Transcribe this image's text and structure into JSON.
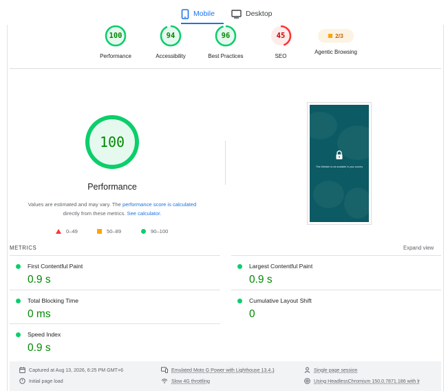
{
  "tabs": [
    {
      "label": "Mobile",
      "active": true,
      "icon": "smartphone-icon"
    },
    {
      "label": "Desktop",
      "active": false,
      "icon": "monitor-icon"
    }
  ],
  "categories": [
    {
      "label": "Performance",
      "score": 100,
      "status": "pass"
    },
    {
      "label": "Accessibility",
      "score": 94,
      "status": "pass"
    },
    {
      "label": "Best Practices",
      "score": 96,
      "status": "pass"
    },
    {
      "label": "SEO",
      "score": 45,
      "status": "fail"
    },
    {
      "label": "Agentic Browsing",
      "score_text": "2/3",
      "status": "average"
    }
  ],
  "performance": {
    "score": "100",
    "score_value": 100,
    "title": "Performance",
    "note_prefix": "Values are estimated and may vary. The ",
    "note_link1": "performance score is calculated",
    "note_middle": " directly from these metrics. ",
    "note_link2": "See calculator."
  },
  "legend": [
    "0–49",
    "50–89",
    "90–100"
  ],
  "screenshot": {
    "message": "This Website is not available in your country"
  },
  "metrics": {
    "title": "METRICS",
    "expand_label": "Expand view",
    "items": [
      {
        "label": "First Contentful Paint",
        "value": "0.9 s"
      },
      {
        "label": "Largest Contentful Paint",
        "value": "0.9 s"
      },
      {
        "label": "Total Blocking Time",
        "value": "0 ms"
      },
      {
        "label": "Cumulative Layout Shift",
        "value": "0"
      },
      {
        "label": "Speed Index",
        "value": "0.9 s"
      }
    ]
  },
  "footer": {
    "captured": "Captured at Aug 13, 2026, 6:25 PM GMT+6",
    "page_load": "Initial page load",
    "device": "Emulated Moto G Power with Lighthouse 13.4.1",
    "throttling": "Slow 4G throttling",
    "session": "Single page session",
    "browser": "Using HeadlessChromium 150.0.7871.186 with lr"
  },
  "colors": {
    "accent": "#1a73e8",
    "pass": "#0cce6b",
    "pass_text": "#008800",
    "average": "#ffa400",
    "fail": "#ff3333"
  }
}
